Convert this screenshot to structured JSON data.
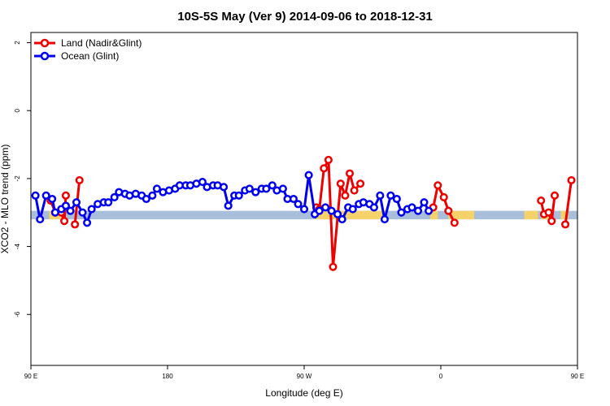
{
  "chart_data": {
    "type": "line",
    "title": "10S-5S May (Ver 9)   2014-09-06 to 2018-12-31",
    "xlabel": "Longitude (deg E)",
    "ylabel": "XCO2 - MLO trend (ppm)",
    "xlim": [
      90,
      450
    ],
    "ylim": [
      -7.5,
      2.3
    ],
    "xticks": [
      {
        "value": 90,
        "label": "90 E"
      },
      {
        "value": 180,
        "label": "180"
      },
      {
        "value": 270,
        "label": "90 W"
      },
      {
        "value": 360,
        "label": "0"
      },
      {
        "value": 450,
        "label": "90 E"
      },
      {
        "value": 540,
        "label": "180"
      }
    ],
    "yticks": [
      {
        "value": 2,
        "label": "2"
      },
      {
        "value": 0,
        "label": "0"
      },
      {
        "value": -2,
        "label": "-2"
      },
      {
        "value": -4,
        "label": "-4"
      },
      {
        "value": -6,
        "label": "-6"
      }
    ],
    "grid": false,
    "legend_position": "top-left",
    "band": {
      "ymin": -3.2,
      "ymax": -2.95,
      "color": "#a8bedb"
    },
    "land_bands": [
      {
        "xmin": 102,
        "xmax": 110
      },
      {
        "xmin": 278,
        "xmax": 323
      },
      {
        "xmin": 353,
        "xmax": 358
      },
      {
        "xmin": 365,
        "xmax": 382
      },
      {
        "xmin": 415,
        "xmax": 424
      },
      {
        "xmin": 426,
        "xmax": 432
      },
      {
        "xmin": 439,
        "xmax": 444
      }
    ],
    "land_band_color": "#f5d36a",
    "series": [
      {
        "name": "Land (Nadir&Glint)",
        "color": "#ee0000",
        "segments": [
          [
            [
              103,
              -2.65
            ],
            [
              106,
              -3.0
            ],
            [
              110,
              -3.0
            ],
            [
              112,
              -3.25
            ],
            [
              113,
              -2.5
            ]
          ],
          [
            [
              119,
              -3.35
            ],
            [
              122,
              -2.05
            ]
          ],
          [
            [
              278,
              -2.85
            ],
            [
              280,
              -2.9
            ],
            [
              283,
              -1.7
            ],
            [
              286,
              -1.45
            ],
            [
              289,
              -4.6
            ],
            [
              294,
              -2.15
            ],
            [
              297,
              -2.5
            ],
            [
              300,
              -1.85
            ],
            [
              303,
              -2.35
            ],
            [
              307,
              -2.15
            ]
          ],
          [
            [
              355,
              -2.85
            ],
            [
              358,
              -2.2
            ],
            [
              362,
              -2.55
            ],
            [
              365,
              -2.95
            ],
            [
              369,
              -3.3
            ]
          ],
          [
            [
              426,
              -2.65
            ],
            [
              428,
              -3.05
            ],
            [
              431,
              -3.0
            ],
            [
              433,
              -3.25
            ],
            [
              435,
              -2.5
            ]
          ],
          [
            [
              442,
              -3.35
            ],
            [
              446,
              -2.05
            ]
          ]
        ]
      },
      {
        "name": "Ocean (Glint)",
        "color": "#0000ee",
        "segments": [
          [
            [
              93,
              -2.5
            ],
            [
              96,
              -3.2
            ],
            [
              100,
              -2.5
            ],
            [
              104,
              -2.6
            ],
            [
              106,
              -3.0
            ],
            [
              110,
              -2.9
            ],
            [
              113,
              -2.8
            ],
            [
              116,
              -2.95
            ],
            [
              120,
              -2.7
            ],
            [
              124,
              -3.0
            ],
            [
              127,
              -3.3
            ],
            [
              130,
              -2.9
            ],
            [
              134,
              -2.75
            ],
            [
              138,
              -2.7
            ],
            [
              141,
              -2.7
            ],
            [
              145,
              -2.55
            ],
            [
              148,
              -2.4
            ],
            [
              152,
              -2.45
            ],
            [
              155,
              -2.5
            ],
            [
              159,
              -2.45
            ],
            [
              163,
              -2.5
            ],
            [
              166,
              -2.6
            ],
            [
              170,
              -2.5
            ],
            [
              173,
              -2.3
            ],
            [
              177,
              -2.4
            ],
            [
              181,
              -2.35
            ],
            [
              185,
              -2.3
            ],
            [
              188,
              -2.2
            ],
            [
              192,
              -2.2
            ],
            [
              195,
              -2.2
            ],
            [
              199,
              -2.15
            ],
            [
              203,
              -2.1
            ],
            [
              206,
              -2.25
            ],
            [
              210,
              -2.2
            ],
            [
              213,
              -2.2
            ],
            [
              217,
              -2.25
            ],
            [
              220,
              -2.8
            ],
            [
              224,
              -2.5
            ],
            [
              227,
              -2.5
            ],
            [
              231,
              -2.35
            ],
            [
              234,
              -2.3
            ],
            [
              238,
              -2.4
            ],
            [
              242,
              -2.3
            ],
            [
              245,
              -2.3
            ],
            [
              249,
              -2.2
            ],
            [
              252,
              -2.35
            ],
            [
              256,
              -2.3
            ],
            [
              259,
              -2.6
            ],
            [
              263,
              -2.6
            ],
            [
              266,
              -2.75
            ],
            [
              270,
              -2.9
            ],
            [
              273,
              -1.9
            ],
            [
              277,
              -3.05
            ],
            [
              280,
              -2.95
            ],
            [
              284,
              -2.85
            ],
            [
              288,
              -2.95
            ],
            [
              292,
              -3.05
            ],
            [
              295,
              -3.2
            ],
            [
              299,
              -2.85
            ],
            [
              302,
              -2.9
            ],
            [
              306,
              -2.75
            ],
            [
              309,
              -2.7
            ],
            [
              313,
              -2.75
            ],
            [
              316,
              -2.85
            ],
            [
              320,
              -2.5
            ],
            [
              323,
              -3.2
            ],
            [
              327,
              -2.5
            ],
            [
              331,
              -2.6
            ],
            [
              334,
              -3.0
            ],
            [
              338,
              -2.9
            ],
            [
              341,
              -2.85
            ],
            [
              345,
              -2.95
            ],
            [
              349,
              -2.7
            ],
            [
              352,
              -2.95
            ]
          ]
        ],
        "offsets": [
          {
            "from": 0,
            "to": 0
          },
          {
            "from": 53,
            "to": 0
          }
        ]
      }
    ]
  }
}
